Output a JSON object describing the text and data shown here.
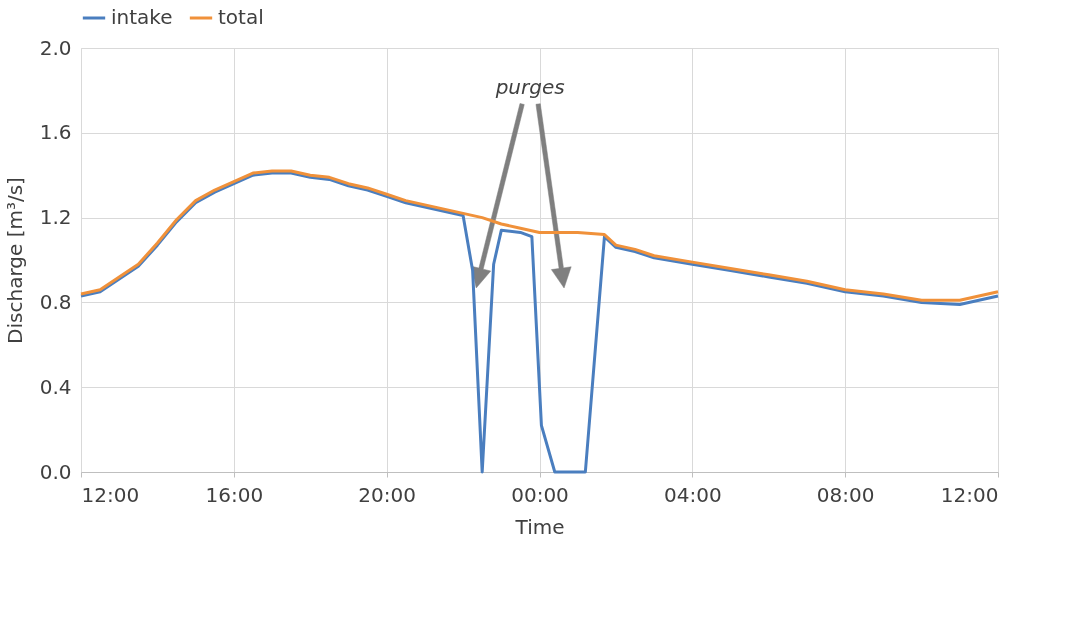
{
  "chart_data": {
    "type": "line",
    "xlabel": "Time",
    "ylabel": "Discharge [m³/s]",
    "xlim": [
      "2000-01-01T12:00",
      "2000-01-02T12:00"
    ],
    "xticks": [
      {
        "value": "2000-01-01T12:00",
        "label": "12:00"
      },
      {
        "value": "2000-01-01T16:00",
        "label": "16:00"
      },
      {
        "value": "2000-01-01T20:00",
        "label": "20:00"
      },
      {
        "value": "2000-01-02T00:00",
        "label": "00:00"
      },
      {
        "value": "2000-01-02T04:00",
        "label": "04:00"
      },
      {
        "value": "2000-01-02T08:00",
        "label": "08:00"
      },
      {
        "value": "2000-01-02T12:00",
        "label": "12:00"
      }
    ],
    "ylim": [
      0,
      2.0
    ],
    "yticks": [
      {
        "value": 0,
        "label": "0.0"
      },
      0.4,
      0.8,
      1.2,
      1.6,
      {
        "value": 2,
        "label": "2.0"
      }
    ],
    "grid": true,
    "legend": "top",
    "line_style": "solid",
    "annotations": [
      "purges"
    ],
    "series": [
      {
        "name": "intake",
        "color": "#4a7ebf",
        "x": [
          "2000-01-01T12:00",
          "2000-01-01T12:30",
          "2000-01-01T13:00",
          "2000-01-01T13:30",
          "2000-01-01T14:00",
          "2000-01-01T14:30",
          "2000-01-01T15:00",
          "2000-01-01T15:30",
          "2000-01-01T16:00",
          "2000-01-01T16:30",
          "2000-01-01T17:00",
          "2000-01-01T17:30",
          "2000-01-01T18:00",
          "2000-01-01T18:30",
          "2000-01-01T19:00",
          "2000-01-01T19:30",
          "2000-01-01T20:00",
          "2000-01-01T20:30",
          "2000-01-01T21:00",
          "2000-01-01T21:30",
          "2000-01-01T22:00",
          "2000-01-01T22:15",
          "2000-01-01T22:30",
          "2000-01-01T22:48",
          "2000-01-01T23:00",
          "2000-01-01T23:30",
          "2000-01-01T23:48",
          "2000-01-02T00:03",
          "2000-01-02T00:24",
          "2000-01-02T01:12",
          "2000-01-02T01:42",
          "2000-01-02T02:00",
          "2000-01-02T02:30",
          "2000-01-02T03:00",
          "2000-01-02T04:00",
          "2000-01-02T05:00",
          "2000-01-02T06:00",
          "2000-01-02T07:00",
          "2000-01-02T08:00",
          "2000-01-02T09:00",
          "2000-01-02T10:00",
          "2000-01-02T11:00",
          "2000-01-02T12:00"
        ],
        "values": [
          0.83,
          0.85,
          0.91,
          0.97,
          1.07,
          1.18,
          1.27,
          1.32,
          1.36,
          1.4,
          1.41,
          1.41,
          1.39,
          1.38,
          1.35,
          1.33,
          1.3,
          1.27,
          1.25,
          1.23,
          1.21,
          0.95,
          0.0,
          0.98,
          1.14,
          1.13,
          1.11,
          0.22,
          0.0,
          0.0,
          1.11,
          1.06,
          1.04,
          1.01,
          0.98,
          0.95,
          0.92,
          0.89,
          0.85,
          0.83,
          0.8,
          0.79,
          0.83
        ]
      },
      {
        "name": "total",
        "color": "#f0913a",
        "x": [
          "2000-01-01T12:00",
          "2000-01-01T12:30",
          "2000-01-01T13:00",
          "2000-01-01T13:30",
          "2000-01-01T14:00",
          "2000-01-01T14:30",
          "2000-01-01T15:00",
          "2000-01-01T15:30",
          "2000-01-01T16:00",
          "2000-01-01T16:30",
          "2000-01-01T17:00",
          "2000-01-01T17:30",
          "2000-01-01T18:00",
          "2000-01-01T18:30",
          "2000-01-01T19:00",
          "2000-01-01T19:30",
          "2000-01-01T20:00",
          "2000-01-01T20:30",
          "2000-01-01T21:00",
          "2000-01-01T21:30",
          "2000-01-01T22:00",
          "2000-01-01T22:30",
          "2000-01-01T23:00",
          "2000-01-01T23:30",
          "2000-01-02T00:00",
          "2000-01-02T01:00",
          "2000-01-02T01:42",
          "2000-01-02T02:00",
          "2000-01-02T02:30",
          "2000-01-02T03:00",
          "2000-01-02T04:00",
          "2000-01-02T05:00",
          "2000-01-02T06:00",
          "2000-01-02T07:00",
          "2000-01-02T08:00",
          "2000-01-02T09:00",
          "2000-01-02T10:00",
          "2000-01-02T11:00",
          "2000-01-02T12:00"
        ],
        "values": [
          0.84,
          0.86,
          0.92,
          0.98,
          1.08,
          1.19,
          1.28,
          1.33,
          1.37,
          1.41,
          1.42,
          1.42,
          1.4,
          1.39,
          1.36,
          1.34,
          1.31,
          1.28,
          1.26,
          1.24,
          1.22,
          1.2,
          1.17,
          1.15,
          1.13,
          1.13,
          1.12,
          1.07,
          1.05,
          1.02,
          0.99,
          0.96,
          0.93,
          0.9,
          0.86,
          0.84,
          0.81,
          0.81,
          0.85
        ]
      }
    ]
  }
}
